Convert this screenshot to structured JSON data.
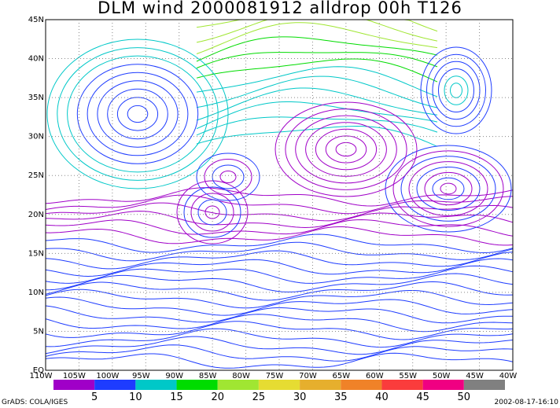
{
  "title": "DLM wind 2000081912 alldrop 00h T126",
  "lat_labels": [
    "45N",
    "40N",
    "35N",
    "30N",
    "25N",
    "20N",
    "15N",
    "10N",
    "5N",
    "EQ"
  ],
  "lon_labels": [
    "110W",
    "105W",
    "100W",
    "95W",
    "90W",
    "85W",
    "80W",
    "75W",
    "70W",
    "65W",
    "60W",
    "55W",
    "50W",
    "45W",
    "40W"
  ],
  "colorbar": {
    "colors": [
      "#a000c8",
      "#1e3cff",
      "#00c8c8",
      "#00dc00",
      "#a0e632",
      "#e6dc32",
      "#e6af2d",
      "#f08228",
      "#fa3c3c",
      "#f00082",
      "#808080"
    ],
    "labels": [
      5,
      10,
      15,
      20,
      25,
      30,
      35,
      40,
      45,
      50
    ]
  },
  "footer_left": "GrADS: COLA/IGES",
  "footer_right": "2002-08-17-16:10"
}
